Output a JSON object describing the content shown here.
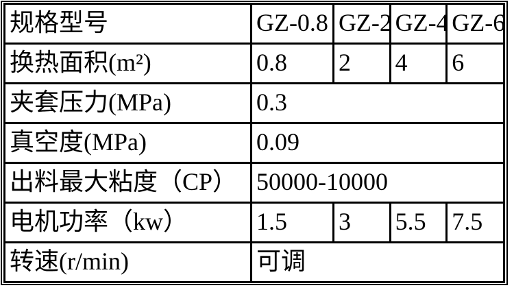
{
  "table": {
    "title": "equipment-specification-table",
    "colors": {
      "border": "#000000",
      "background": "#ffffff",
      "text": "#000000"
    },
    "rows": [
      {
        "label": "规格型号",
        "values": [
          "GZ-0.8",
          "GZ-2",
          "GZ-4",
          "GZ-6"
        ]
      },
      {
        "label": "换热面积(m²)",
        "values": [
          "0.8",
          "2",
          "4",
          "6"
        ]
      },
      {
        "label": "夹套压力(MPa)",
        "values": [
          "0.3"
        ]
      },
      {
        "label": "真空度(MPa)",
        "values": [
          "0.09"
        ]
      },
      {
        "label": "出料最大粘度（CP）",
        "values": [
          "50000-10000"
        ]
      },
      {
        "label": "电机功率（kw）",
        "values": [
          "1.5",
          "3",
          "5.5",
          "7.5"
        ]
      },
      {
        "label": "转速(r/min)",
        "values": [
          "可调"
        ]
      }
    ]
  }
}
